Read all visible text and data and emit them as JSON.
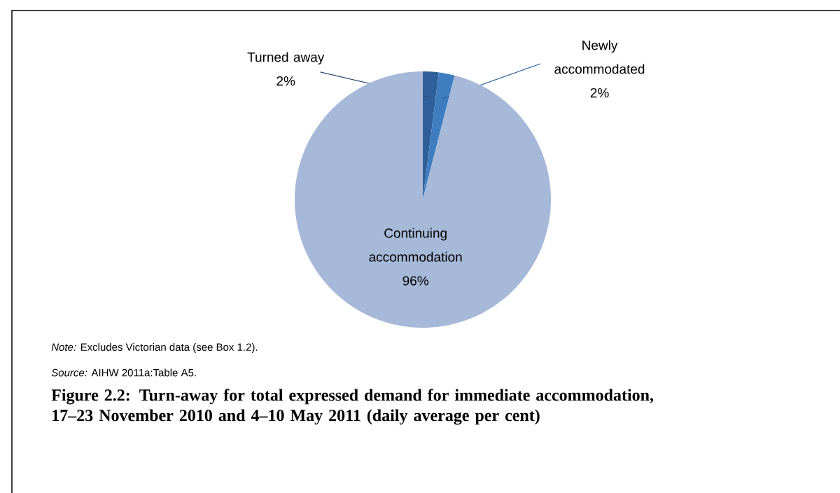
{
  "chart_data": {
    "type": "pie",
    "title": "Figure 2.2: Turn-away for total expressed demand for immediate accommodation, 17–23 November 2010 and 4–10 May 2011 (daily average per cent)",
    "categories": [
      "Turned away",
      "Newly accommodated",
      "Continuing accommodation"
    ],
    "values": [
      2,
      2,
      96
    ],
    "value_labels": [
      "2%",
      "2%",
      "96%"
    ],
    "colors": [
      "#2f5f98",
      "#3f7dc1",
      "#a7b9d9"
    ],
    "annotations": [
      "*Note:* Excludes Victorian data (see Box 1.2).",
      "*Source:* AIHW 2011a:Table A5."
    ]
  }
}
